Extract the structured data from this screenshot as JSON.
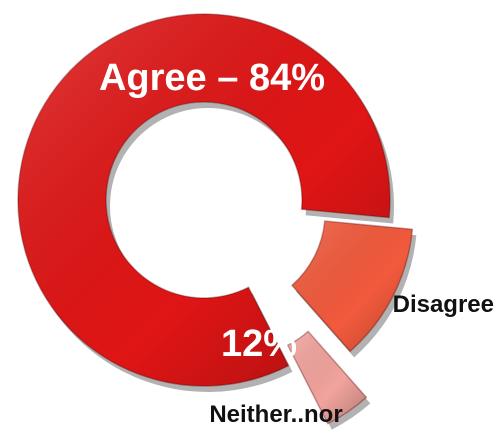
{
  "chart_data": {
    "type": "pie",
    "donut": true,
    "slices": [
      {
        "label": "Agree",
        "value": 84,
        "color": "#e01515",
        "text": "Agree – 84%"
      },
      {
        "label": "Neither..nor",
        "value": 12,
        "color": "#f25a3c",
        "text": "12%"
      },
      {
        "label": "Disagree",
        "value": 4,
        "color": "#f2a39d",
        "text": ""
      }
    ],
    "labels": {
      "disagree": "Disagree",
      "neither": "Neither..nor"
    }
  }
}
